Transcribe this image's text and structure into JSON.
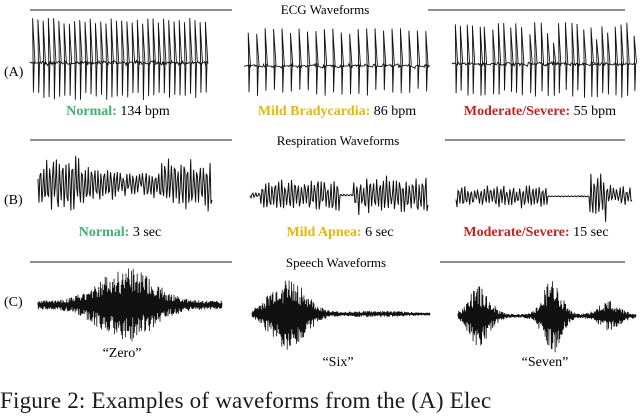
{
  "figure": {
    "rows": [
      {
        "id": "ecg",
        "row_label": "(A)",
        "section_title": "ECG Waveforms",
        "panels": [
          {
            "label_name": "Normal:",
            "label_value": " 134 bpm",
            "label_color": "#3cb371",
            "type": "ecg",
            "beats": 34
          },
          {
            "label_name": "Mild Bradycardia:",
            "label_value": " 86 bpm",
            "label_color": "#e6b800",
            "type": "ecg",
            "beats": 22
          },
          {
            "label_name": "Moderate/Severe:",
            "label_value": " 55 bpm",
            "label_color": "#cc2020",
            "type": "ecg",
            "beats": 30
          }
        ]
      },
      {
        "id": "respiration",
        "row_label": "(B)",
        "section_title": "Respiration Waveforms",
        "panels": [
          {
            "label_name": "Normal:",
            "label_value": " 3 sec",
            "label_color": "#3cb371",
            "type": "resp-normal"
          },
          {
            "label_name": "Mild Apnea:",
            "label_value": " 6 sec",
            "label_color": "#e6b800",
            "type": "resp-mild"
          },
          {
            "label_name": "Moderate/Severe:",
            "label_value": " 15 sec",
            "label_color": "#cc2020",
            "type": "resp-severe"
          }
        ]
      },
      {
        "id": "speech",
        "row_label": "(C)",
        "section_title": "Speech Waveforms",
        "panels": [
          {
            "label_name": "",
            "label_value": "“Zero”",
            "label_color": "#1a1a1a",
            "type": "speech-zero"
          },
          {
            "label_name": "",
            "label_value": "“Six”",
            "label_color": "#1a1a1a",
            "type": "speech-six"
          },
          {
            "label_name": "",
            "label_value": "“Seven”",
            "label_color": "#1a1a1a",
            "type": "speech-seven"
          }
        ]
      }
    ],
    "caption": "Figure 2:   Examples of waveforms from the (A) Elec"
  }
}
